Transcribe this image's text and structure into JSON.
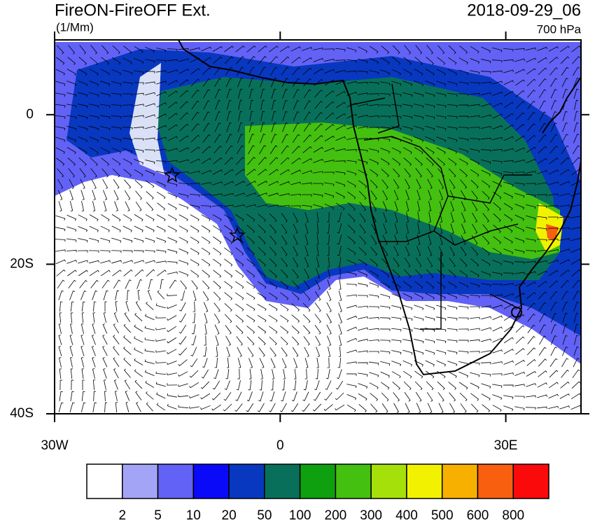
{
  "header": {
    "title": "FireON-FireOFF Ext.",
    "units": "(1/Mm)",
    "date": "2018-09-29_06",
    "level": "700 hPa"
  },
  "map": {
    "xlim": [
      -30,
      40
    ],
    "ylim": [
      -40,
      10
    ],
    "xticks": [
      {
        "value": -30,
        "label": "30W"
      },
      0,
      {
        "value": 30,
        "label": "30E"
      }
    ],
    "yticks": [
      0,
      {
        "value": -20,
        "label": "20S"
      },
      {
        "value": -40,
        "label": "40S"
      }
    ]
  },
  "colorbar": {
    "levels": [
      2,
      5,
      10,
      20,
      50,
      100,
      200,
      300,
      400,
      500,
      600,
      800
    ],
    "colors": [
      "#ffffff",
      "#a4a4f6",
      "#6262f6",
      "#0a0af8",
      "#0838c0",
      "#08705a",
      "#0ea00e",
      "#44c010",
      "#a6e00a",
      "#f2f200",
      "#f8b000",
      "#f86010",
      "#fa0a0a"
    ]
  }
}
